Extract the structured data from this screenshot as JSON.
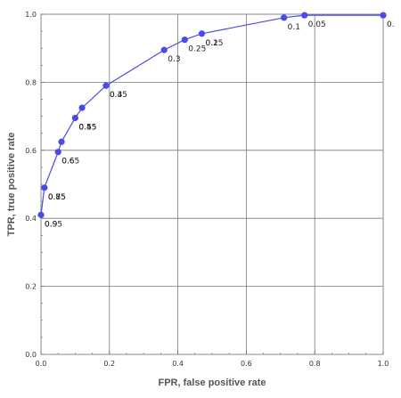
{
  "chart_data": {
    "type": "line",
    "xlabel": "FPR, false positive rate",
    "ylabel": "TPR, true positive rate",
    "xlim": [
      0,
      1
    ],
    "ylim": [
      0,
      1
    ],
    "x_ticks": [
      "0.0",
      "0.2",
      "0.4",
      "0.6",
      "0.8",
      "1.0"
    ],
    "y_ticks": [
      "0.0",
      "0.2",
      "0.4",
      "0.6",
      "0.8",
      "1.0"
    ],
    "grid": true,
    "series_color": "#4a4ae6",
    "series": [
      {
        "points": [
          {
            "x": 0.0,
            "y": 0.41,
            "labels": [
              "0.9",
              "0.95"
            ]
          },
          {
            "x": 0.01,
            "y": 0.49,
            "labels": [
              "0.75",
              "0.8",
              "0.85"
            ]
          },
          {
            "x": 0.05,
            "y": 0.595,
            "labels": [
              "0.6",
              "0.65"
            ]
          },
          {
            "x": 0.06,
            "y": 0.625,
            "labels": []
          },
          {
            "x": 0.1,
            "y": 0.695,
            "labels": [
              "0.5",
              "0.45",
              "0.55"
            ]
          },
          {
            "x": 0.12,
            "y": 0.725,
            "labels": []
          },
          {
            "x": 0.19,
            "y": 0.79,
            "labels": [
              "0.4",
              "0.35"
            ]
          },
          {
            "x": 0.36,
            "y": 0.895,
            "labels": [
              "0.3"
            ]
          },
          {
            "x": 0.42,
            "y": 0.925,
            "labels": [
              "0.25"
            ]
          },
          {
            "x": 0.47,
            "y": 0.943,
            "labels": [
              "0.2",
              "0.15"
            ]
          },
          {
            "x": 0.71,
            "y": 0.99,
            "labels": [
              "0.1"
            ]
          },
          {
            "x": 0.77,
            "y": 0.997,
            "labels": [
              "0.05"
            ]
          },
          {
            "x": 1.0,
            "y": 0.997,
            "labels": [
              "0."
            ]
          }
        ]
      }
    ]
  }
}
